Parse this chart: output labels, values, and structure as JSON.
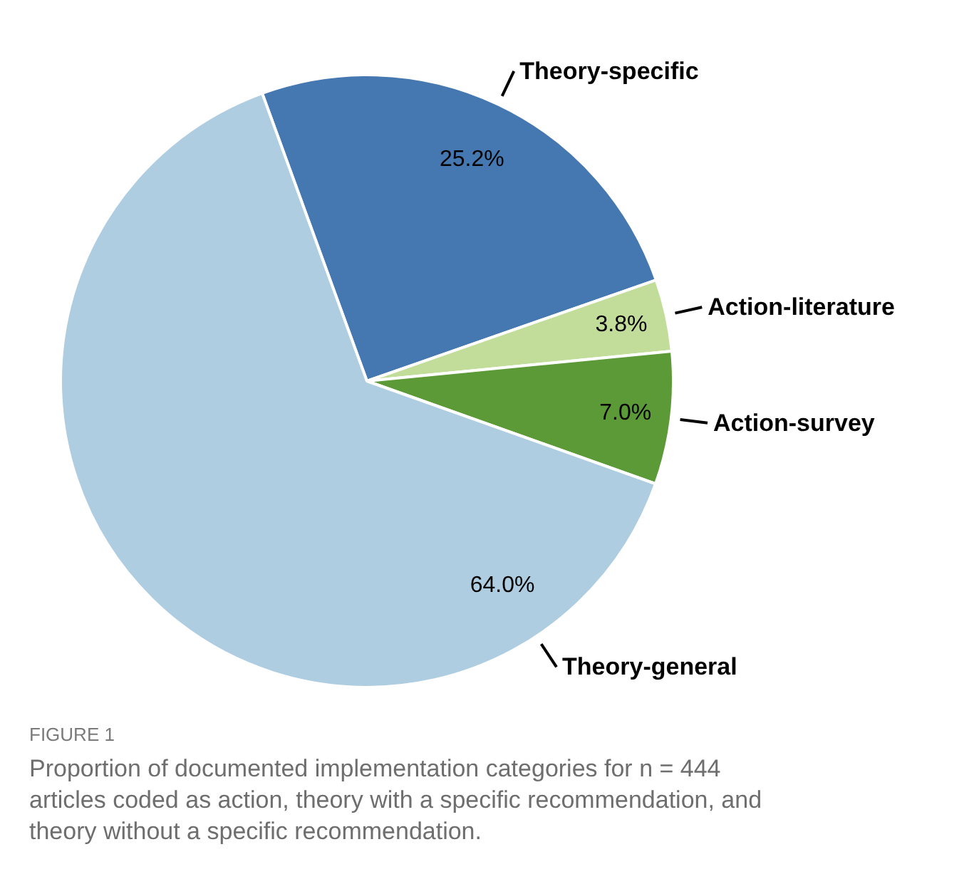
{
  "chart_data": {
    "type": "pie",
    "categories": [
      "Theory-specific",
      "Action-literature",
      "Action-survey",
      "Theory-general"
    ],
    "values": [
      25.2,
      3.8,
      7.0,
      64.0
    ],
    "colors": [
      "#4577b0",
      "#c2dc9a",
      "#5c9a37",
      "#aecde1"
    ],
    "value_labels": [
      "25.2%",
      "3.8%",
      "7.0%",
      "64.0%"
    ],
    "annotations": [
      "FIGURE 1",
      "Proportion of documented implementation categories for n = 444 articles coded as action, theory with a specific recommendation, and theory without a specific recommendation."
    ]
  }
}
